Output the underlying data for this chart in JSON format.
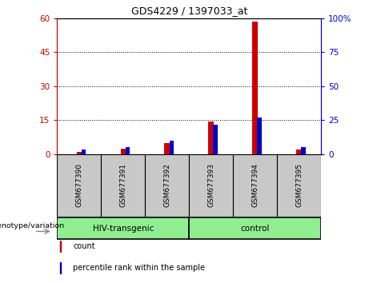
{
  "title": "GDS4229 / 1397033_at",
  "samples": [
    "GSM677390",
    "GSM677391",
    "GSM677392",
    "GSM677393",
    "GSM677394",
    "GSM677395"
  ],
  "count_values": [
    1.0,
    2.5,
    5.0,
    14.5,
    58.5,
    2.0
  ],
  "percentile_values": [
    3.5,
    5.5,
    10.0,
    22.0,
    27.0,
    5.0
  ],
  "left_ylim": [
    0,
    60
  ],
  "right_ylim": [
    0,
    100
  ],
  "left_yticks": [
    0,
    15,
    30,
    45,
    60
  ],
  "right_yticks": [
    0,
    25,
    50,
    75,
    100
  ],
  "right_yticklabels": [
    "0",
    "25",
    "50",
    "75",
    "100%"
  ],
  "groups": [
    {
      "label": "HIV-transgenic",
      "span": [
        0,
        3
      ],
      "color": "#90EE90"
    },
    {
      "label": "control",
      "span": [
        3,
        6
      ],
      "color": "#90EE90"
    }
  ],
  "group_label": "genotype/variation",
  "count_color": "#CC0000",
  "percentile_color": "#0000CC",
  "sample_box_color": "#C8C8C8",
  "legend_items": [
    {
      "label": "count",
      "color": "#CC0000"
    },
    {
      "label": "percentile rank within the sample",
      "color": "#0000CC"
    }
  ],
  "axis_color_left": "#CC0000",
  "axis_color_right": "#0000CC",
  "fig_bg": "#FFFFFF"
}
